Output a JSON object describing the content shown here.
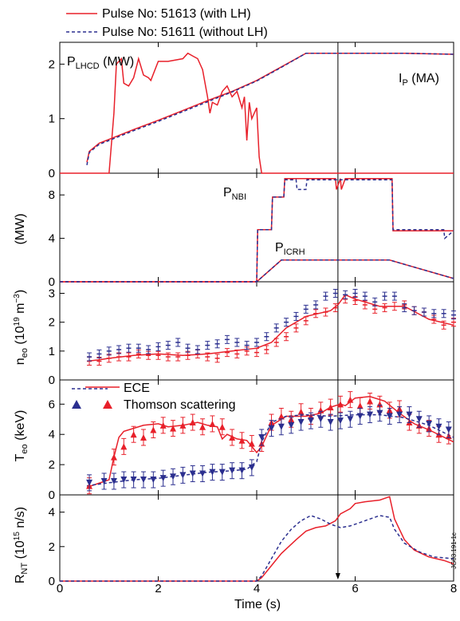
{
  "legend": {
    "with_lh": "Pulse No: 51613 (with LH)",
    "without_lh": "Pulse No: 51611 (without LH)"
  },
  "colors": {
    "with_lh": "#e8202a",
    "without_lh": "#2b2f8f",
    "axis": "#000000"
  },
  "xaxis": {
    "label": "Time (s)",
    "range": [
      0,
      8
    ],
    "ticks": [
      "0",
      "2",
      "4",
      "6",
      "8"
    ]
  },
  "marker_time": 5.65,
  "panels": {
    "p1": {
      "ticks": [
        "0",
        "1",
        "2"
      ],
      "label_p_lhcd": "P",
      "sub_p_lhcd": "LHCD",
      "unit_p_lhcd": " (MW)",
      "label_ip": "I",
      "sub_ip": "P",
      "unit_ip": " (MA)"
    },
    "p2": {
      "ticks": [
        "0",
        "4",
        "8"
      ],
      "ylabel": "(MW)",
      "label_nbi": "P",
      "sub_nbi": "NBI",
      "label_icrh": "P",
      "sub_icrh": "ICRH"
    },
    "p3": {
      "ticks": [
        "0",
        "1",
        "2",
        "3"
      ],
      "ylabel_main": "n",
      "ylabel_sub": "eo",
      "ylabel_unit": " (10",
      "ylabel_sup": "19",
      "ylabel_tail": " m",
      "ylabel_sup2": "−3",
      "ylabel_close": ")"
    },
    "p4": {
      "ticks": [
        "0",
        "2",
        "4",
        "6"
      ],
      "ylabel_main": "T",
      "ylabel_sub": "eo",
      "ylabel_unit": " (keV)",
      "legend_ece": "ECE",
      "legend_thomson": "Thomson scattering"
    },
    "p5": {
      "ticks": [
        "0",
        "2",
        "4"
      ],
      "ylabel_main": "R",
      "ylabel_sub": "NT",
      "ylabel_unit": " (10",
      "ylabel_sup": "15",
      "ylabel_tail": " n/s)",
      "side_text": "JG03.191-1c"
    }
  },
  "chart_data": [
    {
      "type": "line",
      "panel": "P_LHCD and I_P",
      "ylim": [
        0,
        2.4
      ],
      "series": [
        {
          "name": "Pulse No: 51613 (with LH)",
          "quantity": "P_LHCD (MW)",
          "x": [
            0,
            1.0,
            1.1,
            1.15,
            1.25,
            1.3,
            1.4,
            1.5,
            1.6,
            1.7,
            1.8,
            1.85,
            2.0,
            2.2,
            2.5,
            2.6,
            2.7,
            2.8,
            2.9,
            3.0,
            3.05,
            3.1,
            3.2,
            3.3,
            3.4,
            3.5,
            3.6,
            3.7,
            3.75,
            3.8,
            3.85,
            3.9,
            4.0,
            4.05,
            4.1,
            8.0
          ],
          "y": [
            0,
            0,
            1.1,
            2.0,
            2.1,
            1.65,
            1.6,
            1.75,
            2.1,
            1.8,
            1.75,
            1.7,
            2.05,
            2.05,
            2.1,
            2.2,
            2.15,
            2.1,
            1.9,
            1.4,
            1.1,
            1.3,
            1.25,
            1.5,
            1.6,
            1.4,
            1.5,
            1.2,
            1.4,
            0.6,
            1.3,
            1.0,
            1.2,
            0.3,
            0,
            0
          ]
        },
        {
          "name": "Pulse No: 51613 (with LH)",
          "quantity": "I_P (MA)",
          "x": [
            0.55,
            0.6,
            0.8,
            1.0,
            1.5,
            2.0,
            2.5,
            3.0,
            3.5,
            4.0,
            4.5,
            5.0,
            5.5,
            6.0,
            7.0,
            8.0
          ],
          "y": [
            0.2,
            0.4,
            0.55,
            0.62,
            0.8,
            0.97,
            1.15,
            1.33,
            1.5,
            1.7,
            1.95,
            2.2,
            2.2,
            2.2,
            2.2,
            2.18
          ]
        },
        {
          "name": "Pulse No: 51611 (without LH)",
          "quantity": "I_P (MA)",
          "x": [
            0.55,
            0.6,
            0.8,
            1.0,
            1.5,
            2.0,
            2.5,
            3.0,
            3.5,
            4.0,
            4.5,
            5.0,
            5.5,
            6.0,
            7.0,
            8.0
          ],
          "y": [
            0.15,
            0.38,
            0.53,
            0.6,
            0.78,
            0.95,
            1.13,
            1.31,
            1.49,
            1.69,
            1.94,
            2.2,
            2.2,
            2.2,
            2.2,
            2.18
          ]
        }
      ]
    },
    {
      "type": "line",
      "panel": "P_NBI and P_ICRH (MW)",
      "ylim": [
        0,
        10
      ],
      "series": [
        {
          "name": "Pulse No: 51613 (with LH)",
          "quantity": "P_NBI",
          "x": [
            0,
            4.0,
            4.02,
            4.3,
            4.32,
            4.55,
            4.57,
            5.6,
            5.62,
            5.7,
            5.72,
            5.8,
            5.82,
            6.75,
            6.77,
            8.0
          ],
          "y": [
            0,
            0,
            4.8,
            4.8,
            7.8,
            7.8,
            9.5,
            9.5,
            8.5,
            9.5,
            8.5,
            9.5,
            9.5,
            9.5,
            4.7,
            4.7
          ]
        },
        {
          "name": "Pulse No: 51611 (without LH)",
          "quantity": "P_NBI",
          "x": [
            0,
            4.0,
            4.02,
            4.3,
            4.32,
            4.55,
            4.57,
            4.8,
            4.82,
            5.0,
            5.02,
            6.75,
            6.77,
            7.8,
            7.82,
            8.0
          ],
          "y": [
            0,
            0,
            4.8,
            4.8,
            7.8,
            7.8,
            9.4,
            9.4,
            8.5,
            8.5,
            9.4,
            9.4,
            4.8,
            4.8,
            4.0,
            4.7
          ]
        },
        {
          "name": "Pulse No: 51613 (with LH)",
          "quantity": "P_ICRH",
          "x": [
            0,
            4.0,
            4.5,
            6.7,
            8.0
          ],
          "y": [
            0,
            0,
            2.0,
            2.0,
            0.3
          ]
        },
        {
          "name": "Pulse No: 51611 (without LH)",
          "quantity": "P_ICRH",
          "x": [
            0,
            4.0,
            4.5,
            6.7,
            8.0
          ],
          "y": [
            0,
            0,
            2.0,
            2.0,
            0.3
          ]
        }
      ]
    },
    {
      "type": "line",
      "panel": "n_eo (10^19 m^-3)",
      "ylim": [
        0,
        3.4
      ],
      "series": [
        {
          "name": "Pulse No: 51613 (with LH)",
          "x": [
            0.55,
            0.8,
            1.0,
            1.5,
            2.0,
            2.5,
            3.0,
            3.5,
            4.0,
            4.3,
            4.6,
            5.0,
            5.5,
            5.65,
            5.8,
            6.0,
            6.5,
            7.0,
            7.5,
            8.0
          ],
          "y": [
            0.65,
            0.7,
            0.75,
            0.85,
            0.9,
            0.85,
            0.9,
            1.0,
            1.1,
            1.3,
            1.8,
            2.2,
            2.4,
            2.6,
            2.95,
            2.8,
            2.55,
            2.55,
            2.1,
            1.9
          ],
          "points_x": [
            0.6,
            0.8,
            1.0,
            1.2,
            1.4,
            1.6,
            1.8,
            2.0,
            2.2,
            2.4,
            2.6,
            2.8,
            3.0,
            3.2,
            3.4,
            3.6,
            3.8,
            4.0,
            4.2,
            4.4,
            4.6,
            4.8,
            5.0,
            5.2,
            5.4,
            5.6,
            5.8,
            6.0,
            6.2,
            6.4,
            6.6,
            6.8,
            7.0,
            7.2,
            7.4,
            7.6,
            7.8,
            8.0
          ],
          "points_y": [
            0.65,
            0.65,
            0.75,
            0.8,
            0.8,
            0.9,
            0.85,
            0.85,
            0.8,
            0.8,
            0.85,
            0.9,
            0.8,
            0.75,
            0.95,
            0.9,
            1.0,
            0.95,
            1.05,
            1.3,
            1.5,
            1.8,
            2.05,
            2.3,
            2.35,
            2.5,
            2.8,
            2.75,
            2.6,
            2.45,
            2.5,
            2.55,
            2.6,
            2.4,
            2.35,
            2.1,
            1.9,
            2.0
          ]
        },
        {
          "name": "Pulse No: 51611 (without LH)",
          "points_x": [
            0.6,
            0.8,
            1.0,
            1.2,
            1.4,
            1.6,
            1.8,
            2.0,
            2.2,
            2.4,
            2.6,
            2.8,
            3.0,
            3.2,
            3.4,
            3.6,
            3.8,
            4.0,
            4.2,
            4.4,
            4.6,
            4.8,
            5.0,
            5.2,
            5.4,
            5.6,
            5.8,
            6.0,
            6.2,
            6.4,
            6.6,
            6.8,
            7.0,
            7.2,
            7.4,
            7.6,
            7.8,
            8.0
          ],
          "points_y": [
            0.8,
            0.9,
            1.0,
            1.05,
            1.1,
            1.1,
            1.05,
            1.15,
            1.2,
            1.3,
            1.1,
            1.05,
            1.2,
            1.25,
            1.4,
            1.3,
            1.2,
            1.3,
            1.5,
            1.8,
            2.0,
            2.2,
            2.45,
            2.6,
            2.9,
            3.0,
            2.95,
            3.0,
            2.9,
            2.7,
            2.9,
            2.9,
            2.5,
            2.4,
            2.35,
            2.3,
            2.3,
            2.25
          ]
        }
      ]
    },
    {
      "type": "line",
      "panel": "T_eo (keV)",
      "ylim": [
        0,
        7.6
      ],
      "series": [
        {
          "name": "Pulse No: 51613 (with LH)",
          "quantity": "ECE",
          "x": [
            0.55,
            1.0,
            1.1,
            1.2,
            1.3,
            1.5,
            1.7,
            2.0,
            2.2,
            2.5,
            2.8,
            3.0,
            3.2,
            3.3,
            3.4,
            3.6,
            3.8,
            4.0,
            4.1,
            4.3,
            4.6,
            5.0,
            5.3,
            5.5,
            5.7,
            5.8,
            6.0,
            6.3,
            6.6,
            6.9,
            7.2,
            7.5,
            8.0
          ],
          "y": [
            0.5,
            1.0,
            2.5,
            3.8,
            4.2,
            4.4,
            4.6,
            4.7,
            4.5,
            4.6,
            4.8,
            4.6,
            4.5,
            3.7,
            4.0,
            3.7,
            3.6,
            2.8,
            3.2,
            4.6,
            5.2,
            5.2,
            5.4,
            5.8,
            6.0,
            5.9,
            6.4,
            6.5,
            6.2,
            5.4,
            4.7,
            4.3,
            3.5
          ]
        },
        {
          "name": "Pulse No: 51611 (without LH)",
          "quantity": "ECE",
          "x": [
            0.55,
            1.0,
            1.5,
            2.0,
            2.5,
            3.0,
            3.5,
            3.8,
            4.0,
            4.1,
            4.3,
            4.6,
            5.0,
            5.5,
            6.0,
            6.5,
            7.0,
            7.5,
            8.0
          ],
          "y": [
            0.6,
            0.8,
            1.0,
            1.1,
            1.3,
            1.5,
            1.6,
            1.7,
            2.2,
            3.5,
            4.8,
            5.2,
            5.3,
            5.2,
            5.3,
            5.3,
            5.1,
            4.6,
            3.8
          ]
        },
        {
          "name": "Pulse No: 51613 (with LH)",
          "quantity": "Thomson scattering",
          "points_x": [
            0.6,
            1.1,
            1.3,
            1.5,
            1.7,
            1.9,
            2.1,
            2.3,
            2.5,
            2.7,
            2.9,
            3.1,
            3.3,
            3.5,
            3.7,
            3.9,
            4.1,
            4.3,
            4.5,
            4.7,
            4.9,
            5.1,
            5.3,
            5.5,
            5.7,
            5.9,
            6.1,
            6.3,
            6.5,
            6.7,
            6.9,
            7.1,
            7.3,
            7.5,
            7.7,
            7.9
          ],
          "points_y": [
            0.6,
            2.5,
            3.2,
            4.0,
            3.8,
            4.3,
            4.6,
            4.4,
            4.6,
            4.8,
            4.5,
            4.7,
            4.5,
            3.8,
            3.6,
            3.4,
            3.4,
            4.8,
            5.2,
            5.0,
            5.5,
            5.2,
            5.6,
            5.8,
            6.0,
            6.3,
            5.9,
            6.2,
            6.0,
            5.6,
            5.7,
            4.8,
            4.6,
            4.4,
            4.0,
            3.9
          ]
        },
        {
          "name": "Pulse No: 51611 (without LH)",
          "quantity": "Thomson scattering",
          "points_x": [
            0.6,
            0.9,
            1.1,
            1.3,
            1.5,
            1.7,
            1.9,
            2.1,
            2.3,
            2.5,
            2.7,
            2.9,
            3.1,
            3.3,
            3.5,
            3.7,
            3.9,
            4.1,
            4.3,
            4.5,
            4.7,
            4.9,
            5.1,
            5.3,
            5.5,
            5.7,
            5.9,
            6.1,
            6.3,
            6.5,
            6.7,
            6.9,
            7.1,
            7.3,
            7.5,
            7.7,
            7.9
          ],
          "points_y": [
            0.8,
            0.9,
            0.9,
            1.0,
            1.0,
            1.0,
            1.0,
            1.1,
            1.2,
            1.3,
            1.4,
            1.4,
            1.5,
            1.5,
            1.6,
            1.6,
            1.8,
            3.8,
            4.4,
            4.5,
            4.6,
            4.8,
            4.9,
            5.0,
            4.8,
            4.9,
            5.0,
            5.2,
            5.3,
            5.4,
            5.2,
            5.3,
            5.3,
            5.0,
            4.7,
            4.5,
            4.3
          ]
        }
      ]
    },
    {
      "type": "line",
      "panel": "R_NT (10^15 n/s)",
      "ylim": [
        0,
        5
      ],
      "series": [
        {
          "name": "Pulse No: 51613 (with LH)",
          "x": [
            0,
            4.0,
            4.1,
            4.3,
            4.5,
            4.8,
            5.0,
            5.2,
            5.4,
            5.6,
            5.7,
            5.9,
            6.0,
            6.2,
            6.5,
            6.7,
            6.8,
            7.0,
            7.2,
            7.5,
            7.8,
            8.0
          ],
          "y": [
            0,
            0,
            0.2,
            0.9,
            1.6,
            2.4,
            2.9,
            3.1,
            3.2,
            3.5,
            3.9,
            4.2,
            4.5,
            4.6,
            4.7,
            4.9,
            3.6,
            2.4,
            1.8,
            1.4,
            1.2,
            1.0
          ]
        },
        {
          "name": "Pulse No: 51611 (without LH)",
          "x": [
            0,
            4.0,
            4.1,
            4.3,
            4.5,
            4.7,
            4.9,
            5.1,
            5.3,
            5.5,
            5.7,
            5.9,
            6.1,
            6.3,
            6.5,
            6.7,
            6.8,
            7.0,
            7.3,
            7.6,
            8.0
          ],
          "y": [
            0,
            0,
            0.3,
            1.3,
            2.3,
            3.0,
            3.5,
            3.8,
            3.6,
            3.3,
            3.1,
            3.2,
            3.4,
            3.6,
            3.8,
            3.7,
            3.0,
            2.2,
            1.7,
            1.4,
            1.3
          ]
        }
      ]
    }
  ]
}
